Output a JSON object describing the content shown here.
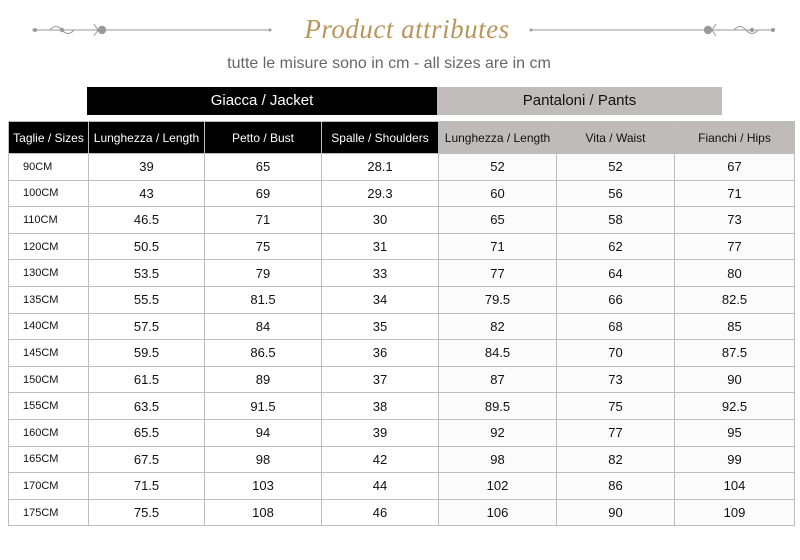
{
  "header": {
    "title": "Product attributes",
    "subtitle": "tutte le misure sono in cm - all sizes are in cm"
  },
  "groups": {
    "jacket": "Giacca / Jacket",
    "pants": "Pantaloni / Pants"
  },
  "columns": [
    "Taglie / Sizes",
    "Lunghezza / Length",
    "Petto / Bust",
    "Spalle / Shoulders",
    "Lunghezza / Length",
    "Vita / Waist",
    "Fianchi / Hips"
  ],
  "rows": [
    [
      "90CM",
      "39",
      "65",
      "28.1",
      "52",
      "52",
      "67"
    ],
    [
      "100CM",
      "43",
      "69",
      "29.3",
      "60",
      "56",
      "71"
    ],
    [
      "110CM",
      "46.5",
      "71",
      "30",
      "65",
      "58",
      "73"
    ],
    [
      "120CM",
      "50.5",
      "75",
      "31",
      "71",
      "62",
      "77"
    ],
    [
      "130CM",
      "53.5",
      "79",
      "33",
      "77",
      "64",
      "80"
    ],
    [
      "135CM",
      "55.5",
      "81.5",
      "34",
      "79.5",
      "66",
      "82.5"
    ],
    [
      "140CM",
      "57.5",
      "84",
      "35",
      "82",
      "68",
      "85"
    ],
    [
      "145CM",
      "59.5",
      "86.5",
      "36",
      "84.5",
      "70",
      "87.5"
    ],
    [
      "150CM",
      "61.5",
      "89",
      "37",
      "87",
      "73",
      "90"
    ],
    [
      "155CM",
      "63.5",
      "91.5",
      "38",
      "89.5",
      "75",
      "92.5"
    ],
    [
      "160CM",
      "65.5",
      "94",
      "39",
      "92",
      "77",
      "95"
    ],
    [
      "165CM",
      "67.5",
      "98",
      "42",
      "98",
      "82",
      "99"
    ],
    [
      "170CM",
      "71.5",
      "103",
      "44",
      "102",
      "86",
      "104"
    ],
    [
      "175CM",
      "75.5",
      "108",
      "46",
      "106",
      "90",
      "109"
    ]
  ],
  "colors": {
    "title": "#b8965a",
    "jacket_header": "#000000",
    "pants_header": "#c0bcbc",
    "ornament": "#999999"
  }
}
